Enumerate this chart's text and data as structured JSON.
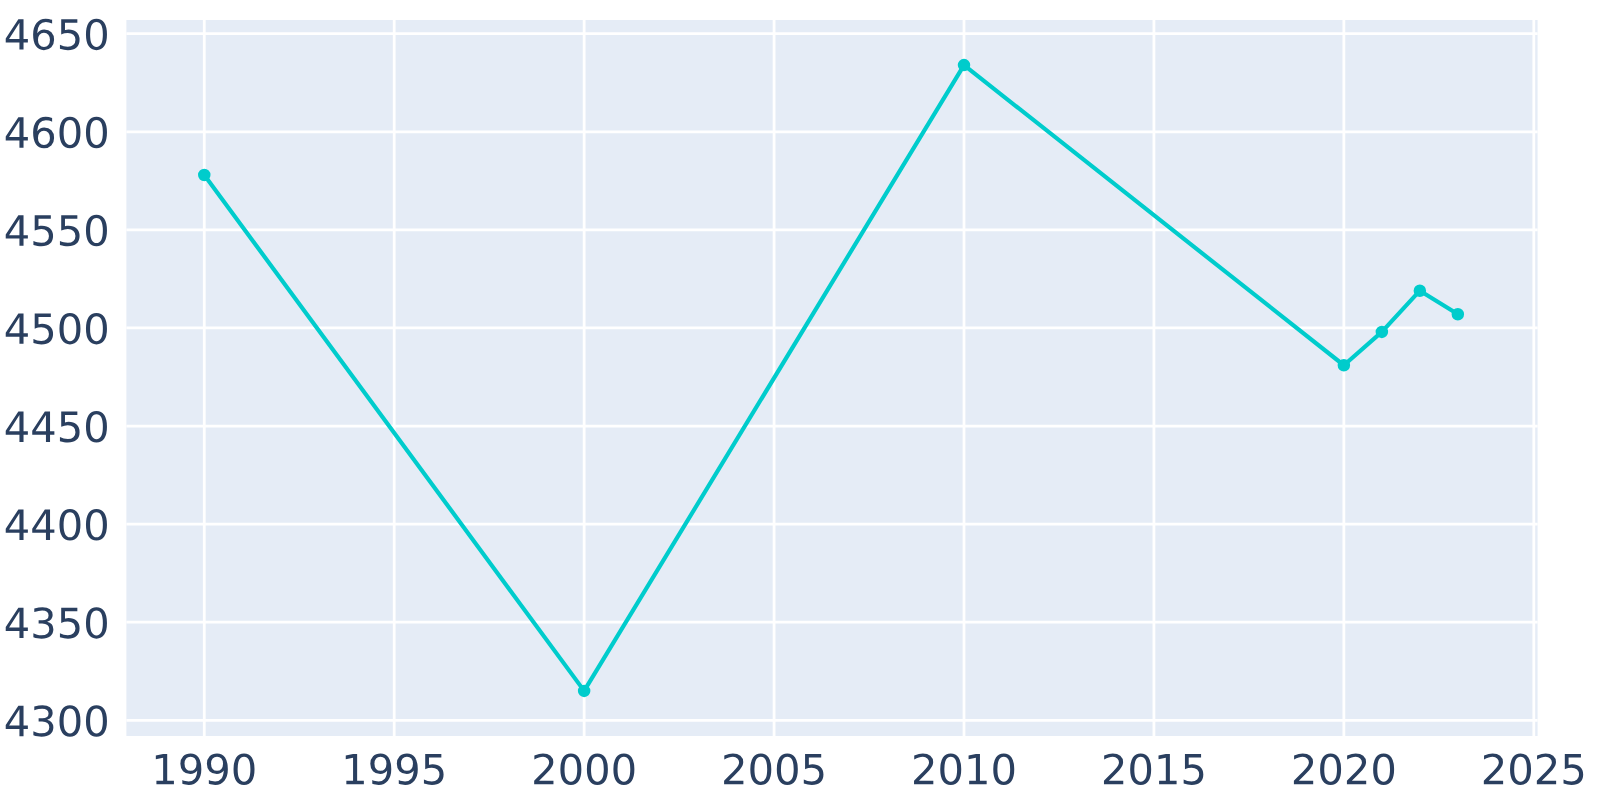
{
  "chart_data": {
    "type": "line",
    "x": [
      1990,
      2000,
      2010,
      2020,
      2021,
      2022,
      2023
    ],
    "series": [
      {
        "color": "#00cccc",
        "values": [
          4578,
          4315,
          4634,
          4481,
          4498,
          4519,
          4507
        ]
      }
    ],
    "xlim": [
      1987.95,
      2025.1
    ],
    "xticks": [
      1990,
      1995,
      2000,
      2005,
      2010,
      2015,
      2020,
      2025
    ],
    "ylim": [
      4292,
      4657
    ],
    "yticks": [
      4300,
      4350,
      4400,
      4450,
      4500,
      4550,
      4600,
      4650
    ],
    "grid": true,
    "marker": "circle",
    "line_style": "solid"
  }
}
